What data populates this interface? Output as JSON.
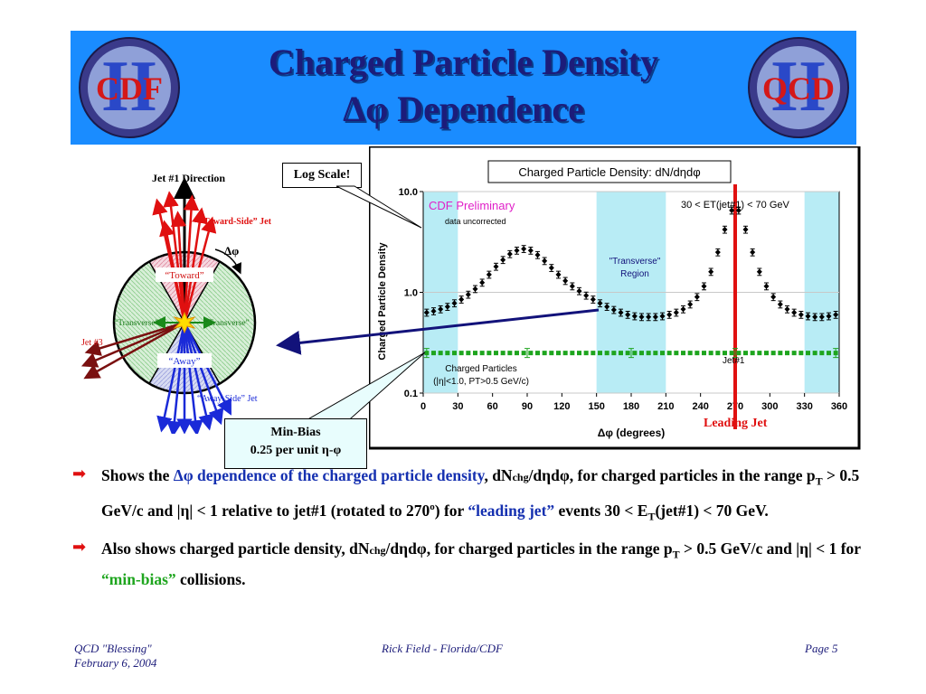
{
  "slide": {
    "title_line1": "Charged Particle Density",
    "title_line2": "Δφ Dependence",
    "logo_left": "CDF",
    "logo_right": "QCD",
    "logo_numeral": "II"
  },
  "diagram": {
    "jet1_direction": "Jet #1 Direction",
    "toward_side_jet": "“Toward-Side” Jet",
    "dphi": "Δφ",
    "toward": "“Toward”",
    "transverse_left": "“Transverse”",
    "transverse_right": "“Transverse”",
    "away": "“Away”",
    "jet3": "Jet #3",
    "away_side_jet": "“Away-Side” Jet"
  },
  "callouts": {
    "log_scale": "Log Scale!",
    "minbias_line1": "Min-Bias",
    "minbias_line2": "0.25 per unit η-φ",
    "leading_jet": "Leading Jet"
  },
  "chart_data": {
    "type": "scatter",
    "title": "Charged Particle Density: dN/dηdφ",
    "xlabel": "Δφ  (degrees)",
    "ylabel": "Charged Particle Density",
    "xlim": [
      0,
      360
    ],
    "ylim": [
      0.1,
      10.0
    ],
    "y_scale": "log",
    "xticks": [
      0,
      30,
      60,
      90,
      120,
      150,
      180,
      210,
      240,
      270,
      300,
      330,
      360
    ],
    "yticks": [
      0.1,
      1.0,
      10.0
    ],
    "ytick_labels": [
      "0.1",
      "1.0",
      "10.0"
    ],
    "grid": true,
    "shaded_regions": [
      [
        0,
        30
      ],
      [
        150,
        210
      ],
      [
        330,
        360
      ]
    ],
    "shade_color": "#b8ecf5",
    "annotations": {
      "preliminary": "CDF Preliminary",
      "uncorrected": "data uncorrected",
      "et_range": "30 < ET(jet#1) < 70 GeV",
      "transverse_region_1": "\"Transverse\"",
      "transverse_region_2": "Region",
      "jet1_marker": "Jet#1",
      "cuts_1": "Charged Particles",
      "cuts_2": "(|η|<1.0, PT>0.5 GeV/c)"
    },
    "series": [
      {
        "color": "#000000",
        "marker": "diamond",
        "x": [
          3,
          9,
          15,
          21,
          27,
          33,
          39,
          45,
          51,
          57,
          63,
          69,
          75,
          81,
          87,
          93,
          99,
          105,
          111,
          117,
          123,
          129,
          135,
          141,
          147,
          153,
          159,
          165,
          171,
          177,
          183,
          189,
          195,
          201,
          207,
          213,
          219,
          225,
          231,
          237,
          243,
          249,
          255,
          261,
          267,
          273,
          279,
          285,
          291,
          297,
          303,
          309,
          315,
          321,
          327,
          333,
          339,
          345,
          351,
          357
        ],
        "y": [
          0.63,
          0.65,
          0.68,
          0.72,
          0.78,
          0.85,
          0.95,
          1.08,
          1.25,
          1.5,
          1.8,
          2.1,
          2.4,
          2.6,
          2.7,
          2.6,
          2.35,
          2.05,
          1.75,
          1.5,
          1.3,
          1.15,
          1.03,
          0.93,
          0.85,
          0.78,
          0.72,
          0.67,
          0.63,
          0.6,
          0.58,
          0.57,
          0.57,
          0.57,
          0.58,
          0.6,
          0.63,
          0.68,
          0.76,
          0.9,
          1.15,
          1.6,
          2.5,
          4.2,
          6.5,
          6.5,
          4.2,
          2.5,
          1.6,
          1.15,
          0.9,
          0.76,
          0.68,
          0.63,
          0.6,
          0.58,
          0.57,
          0.57,
          0.58,
          0.6
        ]
      },
      {
        "color": "#1ea51e",
        "marker": "square",
        "x": [
          3,
          9,
          15,
          21,
          27,
          33,
          39,
          45,
          51,
          57,
          63,
          69,
          75,
          81,
          87,
          93,
          99,
          105,
          111,
          117,
          123,
          129,
          135,
          141,
          147,
          153,
          159,
          165,
          171,
          177,
          183,
          189,
          195,
          201,
          207,
          213,
          219,
          225,
          231,
          237,
          243,
          249,
          255,
          261,
          267,
          273,
          279,
          285,
          291,
          297,
          303,
          309,
          315,
          321,
          327,
          333,
          339,
          345,
          351,
          357
        ],
        "y": [
          0.25,
          0.25,
          0.25,
          0.25,
          0.25,
          0.25,
          0.25,
          0.25,
          0.25,
          0.25,
          0.25,
          0.25,
          0.25,
          0.25,
          0.25,
          0.25,
          0.25,
          0.25,
          0.25,
          0.25,
          0.25,
          0.25,
          0.25,
          0.25,
          0.25,
          0.25,
          0.25,
          0.25,
          0.25,
          0.25,
          0.25,
          0.25,
          0.25,
          0.25,
          0.25,
          0.25,
          0.25,
          0.25,
          0.25,
          0.25,
          0.25,
          0.25,
          0.25,
          0.25,
          0.25,
          0.25,
          0.25,
          0.25,
          0.25,
          0.25,
          0.25,
          0.25,
          0.25,
          0.25,
          0.25,
          0.25,
          0.25,
          0.25,
          0.25,
          0.25
        ]
      }
    ]
  },
  "bullets": {
    "b1_pre": "Shows the ",
    "b1_dphi": "Δφ",
    "b1_blue": " dependence of the charged particle density",
    "b1_a": ", dN",
    "b1_sub": "chg",
    "b1_b": "/dηdφ, for charged particles in the range p",
    "b1_T": "T",
    "b1_c": " > 0.5 GeV/c and |η| < 1 relative to jet#1 (rotated to 270",
    "b1_deg": "o",
    "b1_d": ")  for ",
    "b1_leading": "“leading jet”",
    "b1_e": " events 30 < E",
    "b1_T2": "T",
    "b1_f": "(jet#1) < 70 GeV.",
    "b2_a": "Also shows charged particle density, dN",
    "b2_sub": "chg",
    "b2_b": "/dηdφ, for charged particles in the range p",
    "b2_T": "T",
    "b2_c": " > 0.5 GeV/c and |η| < 1 for ",
    "b2_minbias": "“min-bias”",
    "b2_d": " collisions."
  },
  "footer": {
    "left1": "QCD \"Blessing\"",
    "left2": "February 6, 2004",
    "center": "Rick Field - Florida/CDF",
    "right": "Page 5"
  },
  "colors": {
    "banner": "#1a8cff",
    "title": "#1c1c7a",
    "leading_jet": "#e01010",
    "minbias": "#1ea51e",
    "arrow": "#12127a"
  }
}
